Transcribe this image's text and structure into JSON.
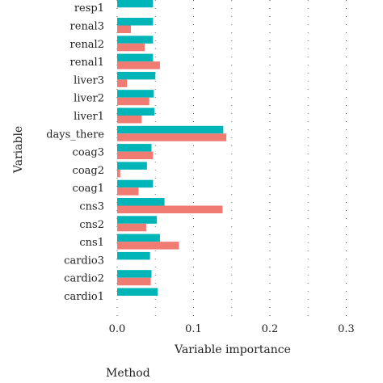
{
  "chart_data": {
    "type": "bar",
    "orientation": "horizontal",
    "xlabel": "Variable importance",
    "ylabel": "Variable",
    "xlim": [
      -0.01,
      0.32
    ],
    "xticks": [
      0.0,
      0.1,
      0.2,
      0.3
    ],
    "xtick_labels": [
      "0.0",
      "0.1",
      "0.2",
      "0.3"
    ],
    "grid": true,
    "legend_title": "Method",
    "categories": [
      "cardio1",
      "cardio2",
      "cardio3",
      "cns1",
      "cns2",
      "cns3",
      "coag1",
      "coag2",
      "coag3",
      "days_there",
      "liver1",
      "liver2",
      "liver3",
      "renal1",
      "renal2",
      "renal3",
      "resp1"
    ],
    "series": [
      {
        "color": "#00B5B8",
        "values": [
          0.053,
          0.045,
          0.043,
          0.056,
          0.052,
          0.062,
          0.047,
          0.039,
          0.045,
          0.139,
          0.049,
          0.048,
          0.05,
          0.047,
          0.047,
          0.047,
          0.047
        ]
      },
      {
        "color": "#F07B72",
        "values": [
          0.0,
          0.044,
          0.0,
          0.081,
          0.038,
          0.138,
          0.028,
          0.004,
          0.047,
          0.143,
          0.032,
          0.042,
          0.013,
          0.056,
          0.036,
          0.018,
          0.0
        ]
      }
    ]
  }
}
